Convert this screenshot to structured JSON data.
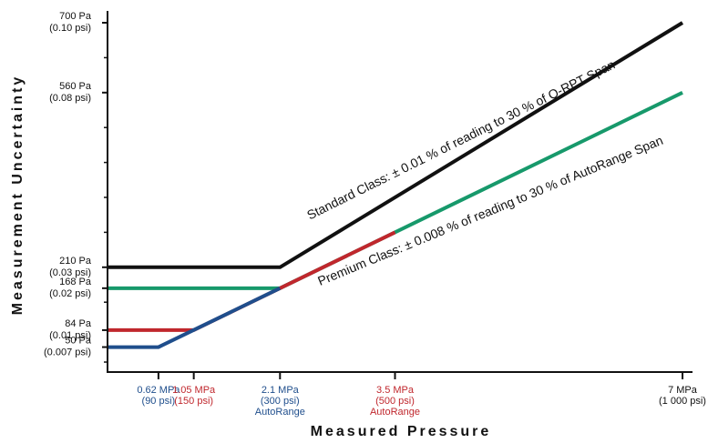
{
  "chart_data": {
    "type": "line",
    "xlabel": "Measured Pressure",
    "ylabel": "Measurement Uncertainty",
    "x_ticks": [
      {
        "value": 0.62,
        "lines": [
          "0.62 MPa",
          "(90 psi)"
        ],
        "color": "#1f4e8c"
      },
      {
        "value": 1.05,
        "lines": [
          "1.05 MPa",
          "(150 psi)"
        ],
        "color": "#c0272d"
      },
      {
        "value": 2.1,
        "lines": [
          "2.1 MPa",
          "(300 psi)",
          "AutoRange"
        ],
        "color": "#1f4e8c"
      },
      {
        "value": 3.5,
        "lines": [
          "3.5 MPa",
          "(500 psi)",
          "AutoRange"
        ],
        "color": "#c0272d"
      },
      {
        "value": 7,
        "lines": [
          "7 MPa",
          "(1 000 psi)"
        ],
        "color": "#111111"
      }
    ],
    "y_ticks": [
      {
        "value": 700,
        "lines": [
          "700 Pa",
          "(0.10 psi)"
        ]
      },
      {
        "value": 560,
        "lines": [
          "560 Pa",
          "(0.08 psi)"
        ]
      },
      {
        "value": 210,
        "lines": [
          "210 Pa",
          "(0.03 psi)"
        ]
      },
      {
        "value": 168,
        "lines": [
          "168 Pa",
          "(0.02 psi)"
        ]
      },
      {
        "value": 84,
        "lines": [
          "84 Pa",
          "(0.01 psi)"
        ]
      },
      {
        "value": 50,
        "lines": [
          "50 Pa",
          "(0.007 psi)"
        ]
      }
    ],
    "series": [
      {
        "color": "#111111",
        "x": [
          0,
          2.1,
          7
        ],
        "y": [
          210,
          210,
          700
        ]
      },
      {
        "color": "#17996b",
        "x": [
          0,
          2.1,
          7
        ],
        "y": [
          168,
          168,
          560
        ]
      },
      {
        "color": "#c0272d",
        "x": [
          0,
          1.05,
          3.5
        ],
        "y": [
          84,
          84,
          280
        ]
      },
      {
        "color": "#1f4e8c",
        "x": [
          0,
          0.62,
          2.1
        ],
        "y": [
          50,
          50,
          168
        ]
      }
    ],
    "annotations": [
      {
        "text": "Standard Class:  ± 0.01 % of reading to 30 % of Q-RPT Span"
      },
      {
        "text": "Premium Class:  ± 0.008 % of reading to 30 % of AutoRange Span"
      }
    ]
  }
}
